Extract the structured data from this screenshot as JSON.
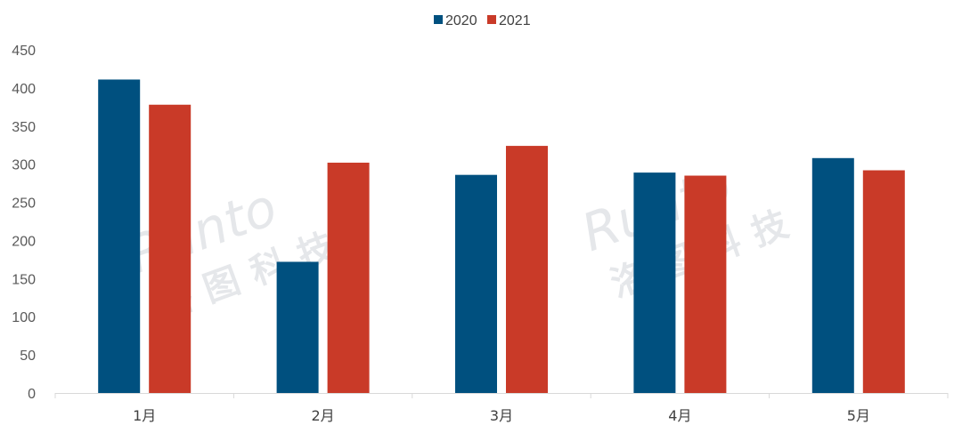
{
  "chart_data": {
    "type": "bar",
    "title": "",
    "xlabel": "",
    "ylabel": "",
    "categories": [
      "1月",
      "2月",
      "3月",
      "4月",
      "5月"
    ],
    "series": [
      {
        "name": "2020",
        "values": [
          411,
          172,
          286,
          289,
          308
        ],
        "color": "#00507f"
      },
      {
        "name": "2021",
        "values": [
          378,
          302,
          324,
          285,
          292
        ],
        "color": "#c93a28"
      }
    ],
    "ylim": [
      0,
      450
    ],
    "yticks": [
      0,
      50,
      100,
      150,
      200,
      250,
      300,
      350,
      400,
      450
    ],
    "grid": false,
    "legend": "top-center"
  },
  "watermark": {
    "logo": "Runto",
    "text": "洛图科技"
  }
}
